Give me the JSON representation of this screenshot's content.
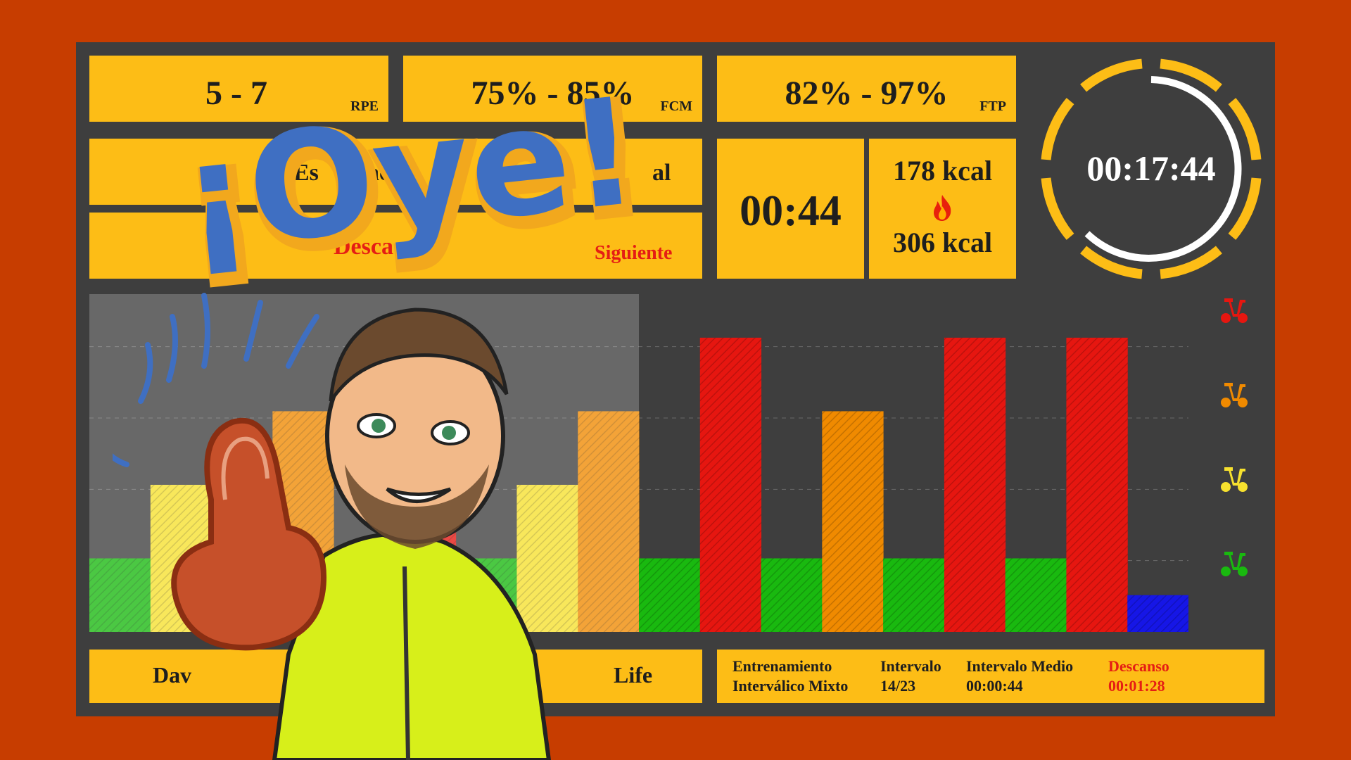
{
  "metrics": {
    "rpe": {
      "value": "5 - 7",
      "unit": "RPE"
    },
    "fcm": {
      "value": "75% - 85%",
      "unit": "FCM"
    },
    "ftp": {
      "value": "82% - 97%",
      "unit": "FTP"
    }
  },
  "status": {
    "state_left": "Es",
    "state_mid": "ac",
    "state_mid2": "ie",
    "state_right": "al",
    "next_label": "Desca",
    "next_label_end": "o",
    "next_right": "Siguiente"
  },
  "interval_timer": "00:44",
  "calories": {
    "current": "178 kcal",
    "total": "306 kcal",
    "icon": "flame-icon"
  },
  "total_timer": "00:17:44",
  "footer": {
    "name_left": "Dav",
    "name_right": "Life",
    "workout_type": [
      "Entrenamiento",
      "Interválico Mixto"
    ],
    "interval": [
      "Intervalo",
      "14/23"
    ],
    "interval_avg": [
      "Intervalo Medio",
      "00:00:44"
    ],
    "rest": [
      "Descanso",
      "00:01:28"
    ]
  },
  "overlay": {
    "headline": "¡Oye!"
  },
  "colors": {
    "panel": "#fdbd16",
    "board": "#3e3e3e",
    "background": "#c73d00",
    "zone_red": "#e61610",
    "zone_orange": "#f08a00",
    "zone_yellow": "#f7e12e",
    "zone_green": "#19b90f",
    "zone_blue": "#1616e6"
  },
  "chart_data": {
    "type": "bar",
    "zones": [
      "red",
      "orange",
      "yellow",
      "green"
    ],
    "bars": [
      {
        "zone": "green",
        "width": 1,
        "level": 1
      },
      {
        "zone": "yellow",
        "width": 1,
        "level": 2
      },
      {
        "zone": "green",
        "width": 1,
        "level": 1
      },
      {
        "zone": "orange",
        "width": 1,
        "level": 3
      },
      {
        "zone": "green",
        "width": 1,
        "level": 1
      },
      {
        "zone": "red",
        "width": 1,
        "level": 4
      },
      {
        "zone": "green",
        "width": 1,
        "level": 1
      },
      {
        "zone": "yellow",
        "width": 1,
        "level": 2
      },
      {
        "zone": "orange",
        "width": 1,
        "level": 3
      },
      {
        "zone": "green",
        "width": 1,
        "level": 1
      },
      {
        "zone": "red",
        "width": 1,
        "level": 4
      },
      {
        "zone": "green",
        "width": 1,
        "level": 1
      },
      {
        "zone": "orange",
        "width": 1,
        "level": 3
      },
      {
        "zone": "green",
        "width": 1,
        "level": 1
      },
      {
        "zone": "red",
        "width": 1,
        "level": 4
      },
      {
        "zone": "green",
        "width": 1,
        "level": 1
      },
      {
        "zone": "red",
        "width": 1,
        "level": 4
      },
      {
        "zone": "blue",
        "width": 1,
        "level": 0.5
      }
    ],
    "completed": 9,
    "total": 18,
    "ylim": [
      0,
      4.5
    ]
  }
}
